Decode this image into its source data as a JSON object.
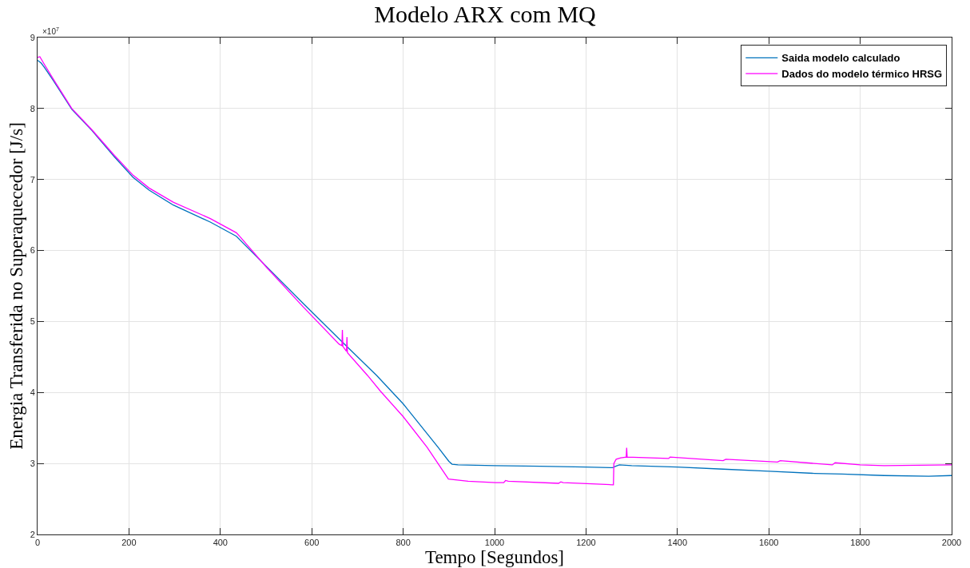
{
  "chart_data": {
    "type": "line",
    "title": "Modelo ARX com MQ",
    "xlabel": "Tempo [Segundos]",
    "ylabel": "Energia Transferida no Superaquecedor [J/s]",
    "annotations": [
      "×10$^{7}$"
    ],
    "xlim": [
      0,
      2000
    ],
    "xticks": [
      0,
      200,
      400,
      600,
      800,
      1000,
      1200,
      1400,
      1600,
      1800,
      2000
    ],
    "ylim": [
      2,
      9
    ],
    "yticks": [
      2,
      3,
      4,
      5,
      6,
      7,
      8,
      9
    ],
    "grid": true,
    "legend": "top right",
    "line_style": "solid",
    "series": [
      {
        "name": "Saida modelo calculado",
        "color": "#0072bd",
        "x": [
          0,
          8,
          15,
          34,
          75,
          119,
          168,
          209,
          244,
          297,
          378,
          435,
          500,
          582,
          667,
          742,
          800,
          850,
          876,
          900,
          907,
          920,
          1000,
          1100,
          1200,
          1258,
          1265,
          1273,
          1300,
          1400,
          1500,
          1601,
          1700,
          1760,
          1852,
          1950,
          2000
        ],
        "values": [
          8.68,
          8.64,
          8.58,
          8.4,
          7.99,
          7.69,
          7.32,
          7.03,
          6.85,
          6.64,
          6.4,
          6.2,
          5.78,
          5.25,
          4.71,
          4.24,
          3.84,
          3.44,
          3.23,
          3.03,
          2.99,
          2.98,
          2.97,
          2.96,
          2.95,
          2.94,
          2.96,
          2.98,
          2.97,
          2.95,
          2.92,
          2.89,
          2.86,
          2.85,
          2.83,
          2.82,
          2.83
        ]
      },
      {
        "name": "Dados do modelo térmico HRSG",
        "color": "#ff00ff",
        "x": [
          0,
          5,
          15,
          34,
          75,
          119,
          168,
          209,
          244,
          297,
          378,
          435,
          445,
          500,
          582,
          660,
          666,
          667,
          668,
          676,
          677,
          678,
          722,
          750,
          800,
          852,
          899,
          942,
          1002,
          1020,
          1024,
          1030,
          1140,
          1145,
          1150,
          1258,
          1260,
          1261,
          1266,
          1276,
          1288,
          1289,
          1290,
          1381,
          1384,
          1500,
          1506,
          1619,
          1625,
          1739,
          1745,
          1800,
          1852,
          2000
        ],
        "values": [
          8.72,
          8.73,
          8.62,
          8.42,
          8.0,
          7.7,
          7.34,
          7.06,
          6.88,
          6.68,
          6.45,
          6.25,
          6.18,
          5.77,
          5.2,
          4.68,
          4.66,
          4.88,
          4.65,
          4.58,
          4.78,
          4.56,
          4.24,
          4.02,
          3.66,
          3.23,
          2.78,
          2.75,
          2.73,
          2.73,
          2.76,
          2.75,
          2.72,
          2.74,
          2.73,
          2.7,
          2.7,
          3.0,
          3.06,
          3.08,
          3.09,
          3.22,
          3.09,
          3.07,
          3.09,
          3.04,
          3.06,
          3.02,
          3.04,
          2.98,
          3.01,
          2.98,
          2.97,
          2.98
        ]
      }
    ]
  }
}
